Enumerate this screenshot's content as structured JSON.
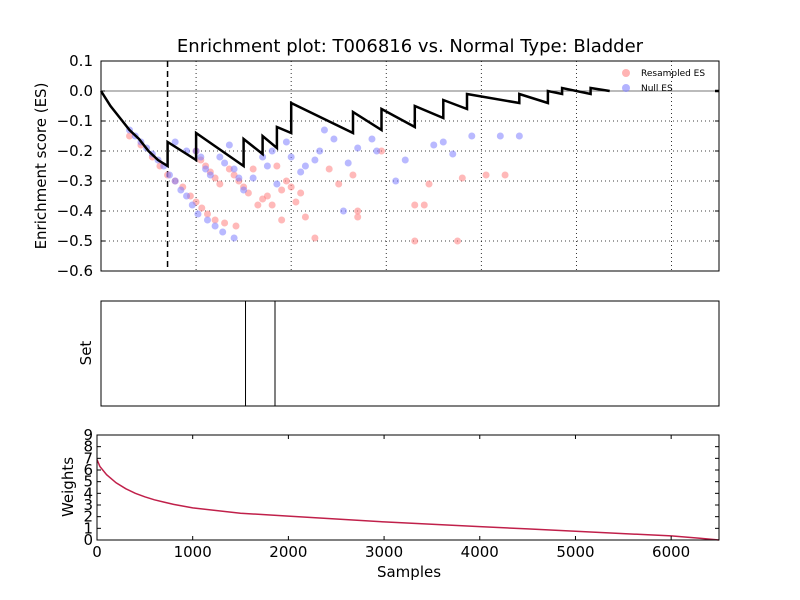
{
  "chart_data": [
    {
      "type": "scatter",
      "title": "Enrichment plot: T006816 vs. Normal Type: Bladder",
      "ylabel": "Enrichment score (ES)",
      "xlim": [
        0,
        6500
      ],
      "ylim": [
        -0.6,
        0.1
      ],
      "y_ticks": [
        "0.1",
        "0.0",
        "−0.1",
        "−0.2",
        "−0.3",
        "−0.4",
        "−0.5",
        "−0.6"
      ],
      "grid": true,
      "legend_position": "top-right",
      "dashed_line_x": 700,
      "colors": {
        "resampled": "#ff8080",
        "null": "#8080ff",
        "es_line": "#000000"
      },
      "series": [
        {
          "name": "Resampled ES",
          "points": [
            [
              300,
              -0.15
            ],
            [
              420,
              -0.18
            ],
            [
              540,
              -0.22
            ],
            [
              620,
              -0.25
            ],
            [
              700,
              -0.28
            ],
            [
              780,
              -0.3
            ],
            [
              860,
              -0.32
            ],
            [
              940,
              -0.35
            ],
            [
              1000,
              -0.37
            ],
            [
              1060,
              -0.39
            ],
            [
              1120,
              -0.41
            ],
            [
              1200,
              -0.43
            ],
            [
              1300,
              -0.44
            ],
            [
              1420,
              -0.45
            ],
            [
              1000,
              -0.2
            ],
            [
              1050,
              -0.23
            ],
            [
              1100,
              -0.25
            ],
            [
              1150,
              -0.27
            ],
            [
              1200,
              -0.29
            ],
            [
              1250,
              -0.31
            ],
            [
              1350,
              -0.26
            ],
            [
              1400,
              -0.28
            ],
            [
              1450,
              -0.3
            ],
            [
              1500,
              -0.32
            ],
            [
              1550,
              -0.34
            ],
            [
              1600,
              -0.26
            ],
            [
              1650,
              -0.38
            ],
            [
              1700,
              -0.36
            ],
            [
              1750,
              -0.35
            ],
            [
              1800,
              -0.38
            ],
            [
              1850,
              -0.25
            ],
            [
              1900,
              -0.43
            ],
            [
              1900,
              -0.33
            ],
            [
              1950,
              -0.3
            ],
            [
              2000,
              -0.32
            ],
            [
              2050,
              -0.37
            ],
            [
              2100,
              -0.34
            ],
            [
              2150,
              -0.42
            ],
            [
              2250,
              -0.49
            ],
            [
              2400,
              -0.26
            ],
            [
              2500,
              -0.31
            ],
            [
              2650,
              -0.28
            ],
            [
              2700,
              -0.4
            ],
            [
              2700,
              -0.42
            ],
            [
              2950,
              -0.2
            ],
            [
              3300,
              -0.38
            ],
            [
              3300,
              -0.5
            ],
            [
              3400,
              -0.38
            ],
            [
              3450,
              -0.31
            ],
            [
              3750,
              -0.5
            ],
            [
              3800,
              -0.29
            ],
            [
              4050,
              -0.28
            ],
            [
              4250,
              -0.28
            ]
          ]
        },
        {
          "name": "Null ES",
          "points": [
            [
              300,
              -0.13
            ],
            [
              360,
              -0.15
            ],
            [
              420,
              -0.17
            ],
            [
              480,
              -0.19
            ],
            [
              540,
              -0.21
            ],
            [
              600,
              -0.23
            ],
            [
              660,
              -0.25
            ],
            [
              720,
              -0.28
            ],
            [
              780,
              -0.3
            ],
            [
              840,
              -0.33
            ],
            [
              900,
              -0.35
            ],
            [
              960,
              -0.38
            ],
            [
              1020,
              -0.41
            ],
            [
              1120,
              -0.43
            ],
            [
              1200,
              -0.45
            ],
            [
              1280,
              -0.47
            ],
            [
              1400,
              -0.49
            ],
            [
              780,
              -0.17
            ],
            [
              900,
              -0.2
            ],
            [
              1000,
              -0.2
            ],
            [
              1050,
              -0.22
            ],
            [
              1100,
              -0.26
            ],
            [
              1150,
              -0.28
            ],
            [
              1250,
              -0.22
            ],
            [
              1300,
              -0.24
            ],
            [
              1350,
              -0.18
            ],
            [
              1400,
              -0.26
            ],
            [
              1450,
              -0.29
            ],
            [
              1500,
              -0.33
            ],
            [
              1600,
              -0.29
            ],
            [
              1700,
              -0.22
            ],
            [
              1750,
              -0.25
            ],
            [
              1800,
              -0.2
            ],
            [
              1850,
              -0.31
            ],
            [
              1950,
              -0.17
            ],
            [
              2000,
              -0.22
            ],
            [
              2100,
              -0.27
            ],
            [
              2150,
              -0.25
            ],
            [
              2250,
              -0.23
            ],
            [
              2300,
              -0.2
            ],
            [
              2350,
              -0.13
            ],
            [
              2450,
              -0.16
            ],
            [
              2550,
              -0.4
            ],
            [
              2600,
              -0.24
            ],
            [
              2700,
              -0.19
            ],
            [
              2850,
              -0.16
            ],
            [
              2900,
              -0.2
            ],
            [
              3100,
              -0.3
            ],
            [
              3200,
              -0.23
            ],
            [
              3500,
              -0.18
            ],
            [
              3600,
              -0.17
            ],
            [
              3700,
              -0.21
            ],
            [
              3900,
              -0.15
            ],
            [
              4200,
              -0.15
            ],
            [
              4400,
              -0.15
            ]
          ]
        },
        {
          "name": "ES",
          "points": [
            [
              0,
              0
            ],
            [
              100,
              -0.05
            ],
            [
              200,
              -0.09
            ],
            [
              300,
              -0.13
            ],
            [
              400,
              -0.16
            ],
            [
              500,
              -0.2
            ],
            [
              600,
              -0.23
            ],
            [
              700,
              -0.25
            ],
            [
              700,
              -0.17
            ],
            [
              1000,
              -0.23
            ],
            [
              1000,
              -0.14
            ],
            [
              1500,
              -0.25
            ],
            [
              1500,
              -0.16
            ],
            [
              1700,
              -0.21
            ],
            [
              1700,
              -0.15
            ],
            [
              1850,
              -0.19
            ],
            [
              1850,
              -0.12
            ],
            [
              2000,
              -0.14
            ],
            [
              2000,
              -0.04
            ],
            [
              2650,
              -0.14
            ],
            [
              2650,
              -0.07
            ],
            [
              2950,
              -0.13
            ],
            [
              2950,
              -0.06
            ],
            [
              3300,
              -0.12
            ],
            [
              3300,
              -0.05
            ],
            [
              3600,
              -0.09
            ],
            [
              3600,
              -0.03
            ],
            [
              3850,
              -0.06
            ],
            [
              3850,
              -0.01
            ],
            [
              4400,
              -0.04
            ],
            [
              4400,
              -0.01
            ],
            [
              4700,
              -0.04
            ],
            [
              4700,
              0
            ],
            [
              4850,
              -0.01
            ],
            [
              4850,
              0.01
            ],
            [
              5150,
              -0.01
            ],
            [
              5150,
              0.01
            ],
            [
              5350,
              0
            ]
          ]
        }
      ]
    },
    {
      "type": "line",
      "ylabel": "Set",
      "xlim": [
        0,
        6500
      ],
      "set_positions": [
        1520,
        1830
      ]
    },
    {
      "type": "line",
      "xlabel": "Samples",
      "ylabel": "Weights",
      "xlim": [
        0,
        6500
      ],
      "ylim": [
        0,
        9
      ],
      "x_ticks": [
        "0",
        "1000",
        "2000",
        "3000",
        "4000",
        "5000",
        "6000"
      ],
      "y_ticks": [
        "0",
        "1",
        "2",
        "3",
        "4",
        "5",
        "6",
        "7",
        "8",
        "9"
      ],
      "series": [
        {
          "name": "Weights",
          "color": "#c0204a",
          "x": [
            0,
            30,
            100,
            200,
            300,
            400,
            500,
            600,
            700,
            800,
            1000,
            1500,
            2000,
            2500,
            3000,
            3500,
            4000,
            4500,
            5000,
            5500,
            6000,
            6300,
            6500
          ],
          "y": [
            6.9,
            6.3,
            5.6,
            4.9,
            4.4,
            4.0,
            3.7,
            3.45,
            3.25,
            3.05,
            2.75,
            2.3,
            2.05,
            1.8,
            1.55,
            1.35,
            1.15,
            0.95,
            0.75,
            0.55,
            0.35,
            0.15,
            0.0
          ]
        }
      ]
    }
  ]
}
